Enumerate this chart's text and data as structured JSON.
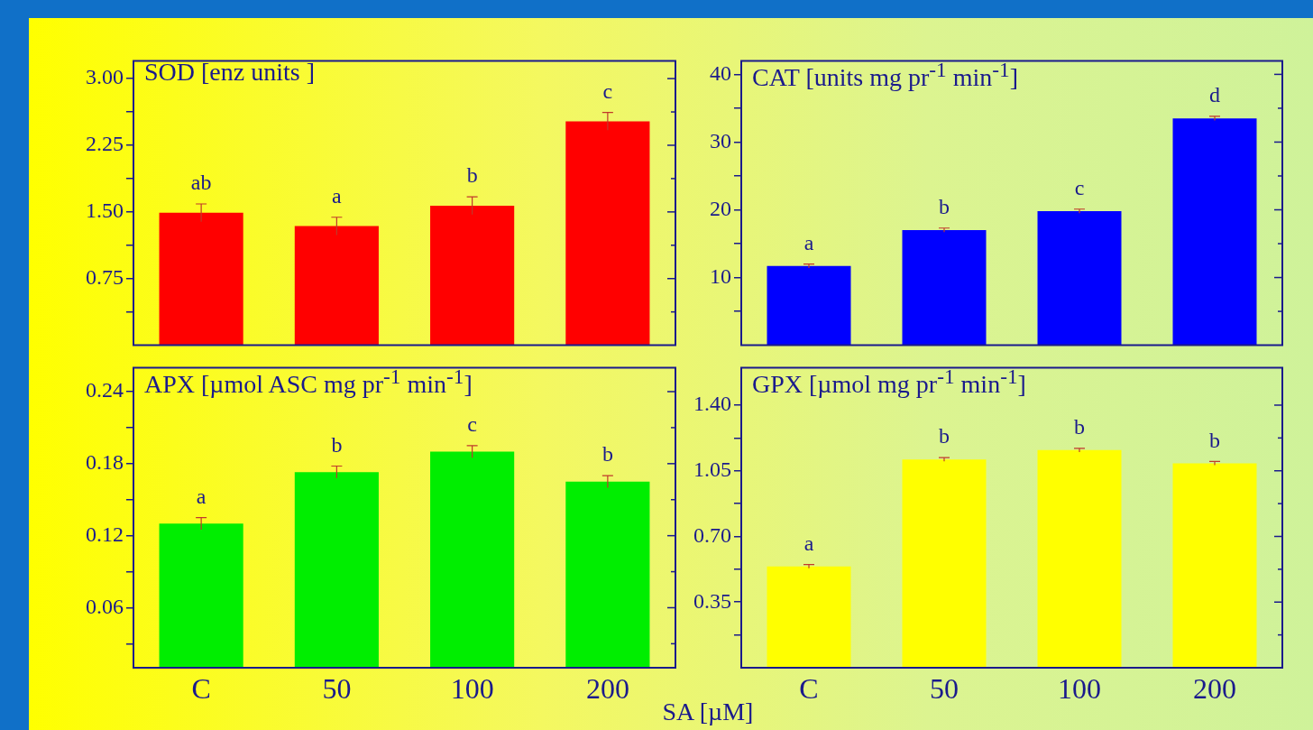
{
  "chart_data": [
    {
      "type": "bar",
      "title": "SOD [enz units ]",
      "categories": [
        "C",
        "50",
        "100",
        "200"
      ],
      "values": [
        1.49,
        1.34,
        1.57,
        2.52
      ],
      "errors": [
        0.1,
        0.1,
        0.1,
        0.1
      ],
      "color": "#ff0000",
      "ylim": [
        0,
        3.2
      ],
      "yticks": [
        {
          "value": 0.375,
          "label": null
        },
        {
          "value": 0.75,
          "label": "0.75"
        },
        {
          "value": 1.125,
          "label": null
        },
        {
          "value": 1.5,
          "label": "1.50"
        },
        {
          "value": 1.875,
          "label": null
        },
        {
          "value": 2.25,
          "label": "2.25"
        },
        {
          "value": 2.625,
          "label": null
        },
        {
          "value": 3,
          "label": "3.00"
        }
      ],
      "tick_labels": "y",
      "annotations": [
        {
          "text": "ab",
          "x": "C",
          "y": 1.59
        },
        {
          "text": "a",
          "x": "50",
          "y": 1.44
        },
        {
          "text": "b",
          "x": "100",
          "y": 1.67
        },
        {
          "text": "c",
          "x": "200",
          "y": 2.62
        }
      ]
    },
    {
      "type": "bar",
      "title": "CAT [units mg pr$^{-1}$ min$^{-1}$]",
      "categories": [
        "C",
        "50",
        "100",
        "200"
      ],
      "values": [
        11.7,
        17.0,
        19.8,
        33.5
      ],
      "errors": [
        0.3,
        0.3,
        0.3,
        0.3
      ],
      "color": "#0000ff",
      "ylim": [
        0,
        42
      ],
      "yticks": [
        {
          "value": 5,
          "label": null
        },
        {
          "value": 10,
          "label": "10"
        },
        {
          "value": 15,
          "label": null
        },
        {
          "value": 20,
          "label": "20"
        },
        {
          "value": 25,
          "label": null
        },
        {
          "value": 30,
          "label": "30"
        },
        {
          "value": 35,
          "label": null
        },
        {
          "value": 40,
          "label": "40"
        }
      ],
      "tick_labels": "y",
      "annotations": [
        {
          "text": "a",
          "x": "C",
          "y": 12.0
        },
        {
          "text": "b",
          "x": "50",
          "y": 17.3
        },
        {
          "text": "c",
          "x": "100",
          "y": 20.1
        },
        {
          "text": "d",
          "x": "200",
          "y": 33.8
        }
      ]
    },
    {
      "type": "bar",
      "title": "APX [µmol ASC mg pr$^{-1}$ min$^{-1}$]",
      "xlabel": "SA [µM]",
      "categories": [
        "C",
        "50",
        "100",
        "200"
      ],
      "values": [
        0.13,
        0.173,
        0.19,
        0.165
      ],
      "errors": [
        0.005,
        0.005,
        0.005,
        0.005
      ],
      "color": "#00ee00",
      "ylim": [
        0.01,
        0.26
      ],
      "yticks": [
        {
          "value": 0.03,
          "label": null
        },
        {
          "value": 0.06,
          "label": "0.06"
        },
        {
          "value": 0.09,
          "label": null
        },
        {
          "value": 0.12,
          "label": "0.12"
        },
        {
          "value": 0.15,
          "label": null
        },
        {
          "value": 0.18,
          "label": "0.18"
        },
        {
          "value": 0.21,
          "label": null
        },
        {
          "value": 0.24,
          "label": "0.24"
        }
      ],
      "annotations": [
        {
          "text": "a",
          "x": "C",
          "y": 0.135
        },
        {
          "text": "b",
          "x": "50",
          "y": 0.178
        },
        {
          "text": "c",
          "x": "100",
          "y": 0.195
        },
        {
          "text": "b",
          "x": "200",
          "y": 0.17
        }
      ]
    },
    {
      "type": "bar",
      "title": "GPX [µmol mg pr$^{-1}$ min$^{-1}$]",
      "categories": [
        "C",
        "50",
        "100",
        "200"
      ],
      "values": [
        0.54,
        1.11,
        1.16,
        1.09
      ],
      "errors": [
        0.01,
        0.01,
        0.01,
        0.01
      ],
      "color": "#ffff00",
      "ylim": [
        0,
        1.6
      ],
      "yticks": [
        {
          "value": 0.175,
          "label": null
        },
        {
          "value": 0.35,
          "label": "0.35"
        },
        {
          "value": 0.525,
          "label": null
        },
        {
          "value": 0.7,
          "label": "0.70"
        },
        {
          "value": 0.875,
          "label": null
        },
        {
          "value": 1.05,
          "label": "1.05"
        },
        {
          "value": 1.225,
          "label": null
        },
        {
          "value": 1.4,
          "label": "1.40"
        }
      ],
      "annotations": [
        {
          "text": "a",
          "x": "C",
          "y": 0.55
        },
        {
          "text": "b",
          "x": "50",
          "y": 1.12
        },
        {
          "text": "b",
          "x": "100",
          "y": 1.17
        },
        {
          "text": "b",
          "x": "200",
          "y": 1.1
        }
      ]
    }
  ]
}
